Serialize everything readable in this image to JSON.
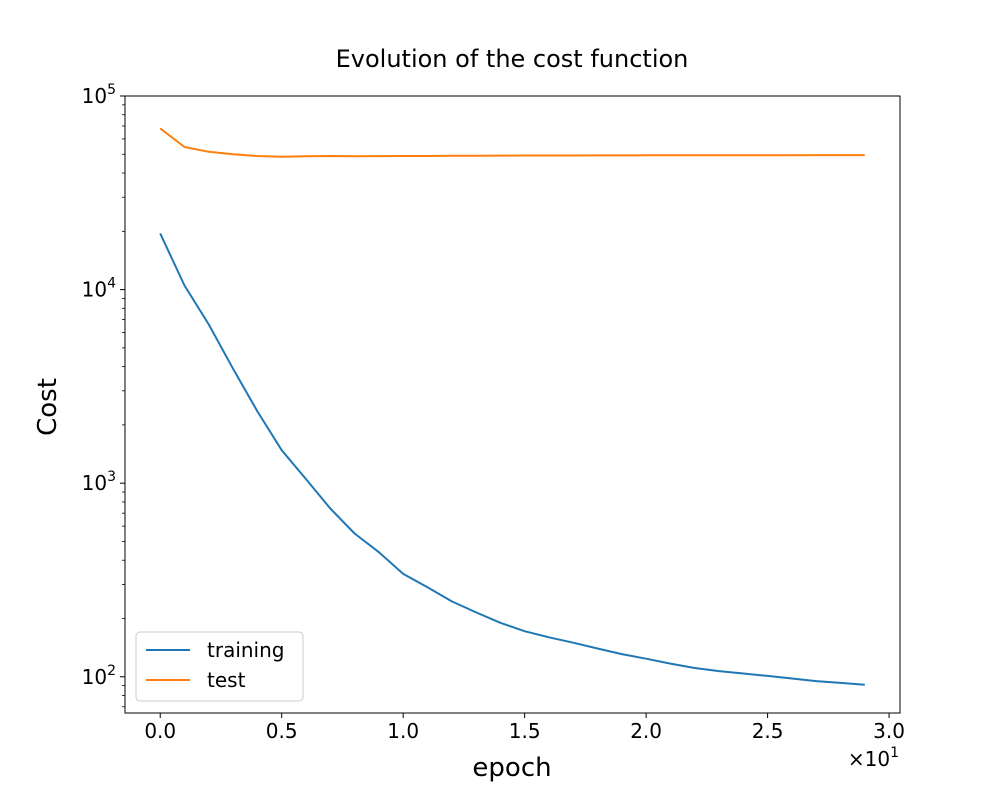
{
  "chart_data": {
    "type": "line",
    "title": "Evolution of the cost function",
    "xlabel": "epoch",
    "ylabel": "Cost",
    "x_scale_label": "×10",
    "x_scale_exponent": "1",
    "xlim": [
      -1.45,
      30.45
    ],
    "ylim": [
      65,
      100000
    ],
    "yscale": "log",
    "xticks": [
      {
        "value": 0,
        "label": "0.0"
      },
      {
        "value": 5,
        "label": "0.5"
      },
      {
        "value": 10,
        "label": "1.0"
      },
      {
        "value": 15,
        "label": "1.5"
      },
      {
        "value": 20,
        "label": "2.0"
      },
      {
        "value": 25,
        "label": "2.5"
      },
      {
        "value": 30,
        "label": "3.0"
      }
    ],
    "yticks": [
      {
        "value": 100,
        "base": "10",
        "exp": "2"
      },
      {
        "value": 1000,
        "base": "10",
        "exp": "3"
      },
      {
        "value": 10000,
        "base": "10",
        "exp": "4"
      },
      {
        "value": 100000,
        "base": "10",
        "exp": "5"
      }
    ],
    "x": [
      0,
      1,
      2,
      3,
      4,
      5,
      6,
      7,
      8,
      9,
      10,
      11,
      12,
      13,
      14,
      15,
      16,
      17,
      18,
      19,
      20,
      21,
      22,
      23,
      24,
      25,
      26,
      27,
      28,
      29
    ],
    "series": [
      {
        "name": "training",
        "color": "#1f77b4",
        "values": [
          19500,
          10500,
          6600,
          3900,
          2350,
          1480,
          1050,
          740,
          550,
          440,
          340,
          290,
          245,
          215,
          190,
          172,
          160,
          150,
          140,
          131,
          124,
          117,
          111,
          107,
          104,
          101,
          98,
          95,
          93,
          91
        ]
      },
      {
        "name": "test",
        "color": "#ff7f0e",
        "values": [
          68000,
          54500,
          51500,
          50000,
          49000,
          48600,
          48800,
          49000,
          48800,
          48900,
          49000,
          49000,
          49100,
          49150,
          49200,
          49250,
          49300,
          49300,
          49350,
          49350,
          49400,
          49400,
          49400,
          49450,
          49450,
          49450,
          49450,
          49500,
          49500,
          49500
        ]
      }
    ],
    "grid": false,
    "legend_position": "lower-left"
  }
}
